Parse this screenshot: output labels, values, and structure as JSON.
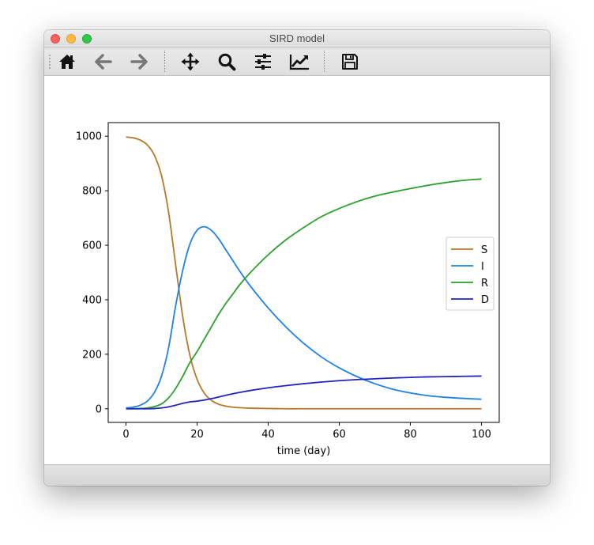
{
  "window": {
    "title": "SIRD model"
  },
  "toolbar": {
    "buttons": [
      {
        "name": "home-button",
        "icon": "home-icon"
      },
      {
        "name": "back-button",
        "icon": "arrow-left-icon"
      },
      {
        "name": "forward-button",
        "icon": "arrow-right-icon"
      },
      {
        "name": "pan-button",
        "icon": "move-icon"
      },
      {
        "name": "zoom-button",
        "icon": "magnifier-icon"
      },
      {
        "name": "configure-subplots-button",
        "icon": "sliders-icon"
      },
      {
        "name": "edit-axis-button",
        "icon": "line-chart-icon"
      },
      {
        "name": "save-button",
        "icon": "floppy-disk-icon"
      }
    ]
  },
  "colors": {
    "S": "#b5782b",
    "I": "#1f80e8",
    "R": "#2ca02c",
    "D": "#2323c0"
  },
  "chart_data": {
    "type": "line",
    "title": "",
    "xlabel": "time (day)",
    "ylabel": "",
    "xlim": [
      -5,
      105
    ],
    "ylim": [
      -50,
      1050
    ],
    "xticks": [
      0,
      20,
      40,
      60,
      80,
      100
    ],
    "yticks": [
      0,
      200,
      400,
      600,
      800,
      1000
    ],
    "grid": false,
    "legend": "center-right",
    "x": [
      0,
      2,
      4,
      6,
      8,
      10,
      12,
      14,
      16,
      18,
      20,
      22,
      24,
      26,
      28,
      30,
      32,
      35,
      40,
      45,
      50,
      55,
      60,
      65,
      70,
      75,
      80,
      85,
      90,
      95,
      100
    ],
    "series": [
      {
        "name": "S",
        "values": [
          997,
          994,
          986,
          968,
          930,
          855,
          720,
          525,
          335,
          195,
          108,
          58,
          31,
          17,
          10,
          6,
          4,
          2,
          1,
          0,
          0,
          0,
          0,
          0,
          0,
          0,
          0,
          0,
          0,
          0,
          0
        ]
      },
      {
        "name": "I",
        "values": [
          3,
          6,
          13,
          28,
          60,
          120,
          225,
          380,
          510,
          605,
          655,
          668,
          655,
          625,
          585,
          545,
          505,
          450,
          370,
          300,
          240,
          190,
          150,
          118,
          92,
          72,
          58,
          48,
          42,
          38,
          35
        ]
      },
      {
        "name": "R",
        "values": [
          0,
          0,
          1,
          3,
          8,
          18,
          40,
          75,
          120,
          170,
          210,
          255,
          300,
          345,
          385,
          420,
          455,
          500,
          565,
          620,
          665,
          705,
          735,
          760,
          780,
          795,
          808,
          820,
          830,
          838,
          843
        ]
      },
      {
        "name": "D",
        "values": [
          0,
          0,
          0,
          0,
          1,
          3,
          7,
          13,
          20,
          25,
          28,
          32,
          37,
          43,
          49,
          55,
          60,
          67,
          77,
          85,
          92,
          98,
          103,
          107,
          110,
          113,
          115,
          117,
          118,
          119,
          120
        ]
      }
    ]
  }
}
